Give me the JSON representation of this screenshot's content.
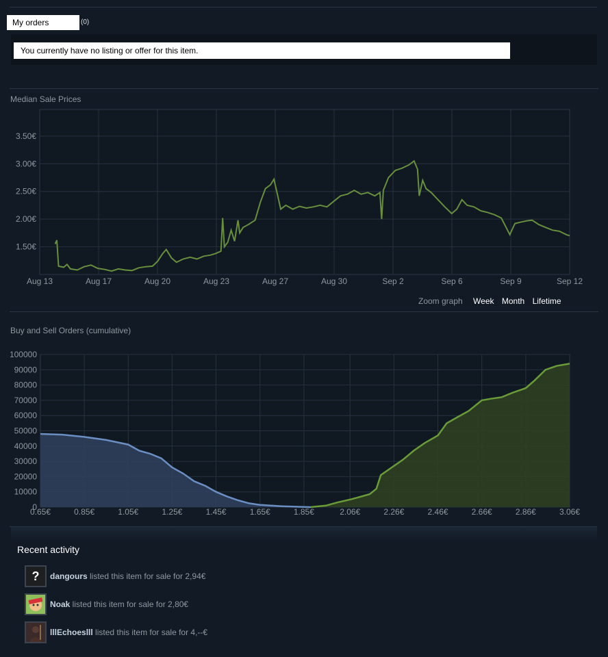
{
  "orders": {
    "tab_label": "My orders",
    "count": "(0)",
    "message": "You currently have no listing or offer for this item."
  },
  "median_chart": {
    "title": "Median Sale Prices",
    "zoom_label": "Zoom graph",
    "zoom_options": [
      "Week",
      "Month",
      "Lifetime"
    ]
  },
  "orders_chart": {
    "title": "Buy and Sell Orders (cumulative)"
  },
  "chart_data": [
    {
      "type": "line",
      "title": "Median Sale Prices",
      "x_tick_labels": [
        "Aug 13",
        "Aug 17",
        "Aug 20",
        "Aug 23",
        "Aug 27",
        "Aug 30",
        "Sep 2",
        "Sep 6",
        "Sep 9",
        "Sep 12"
      ],
      "y_tick_labels": [
        "1.50€",
        "2.00€",
        "2.50€",
        "3.00€",
        "3.50€"
      ],
      "y_ticks": [
        1.5,
        2.0,
        2.5,
        3.0,
        3.5
      ],
      "ylim": [
        1.0,
        3.98
      ],
      "xlim": [
        0,
        31
      ],
      "x_unit": "days since Aug 12",
      "grid": true,
      "color": "#688f3e",
      "points": [
        [
          0.9,
          1.55
        ],
        [
          1.0,
          1.62
        ],
        [
          1.1,
          1.15
        ],
        [
          1.4,
          1.13
        ],
        [
          1.6,
          1.18
        ],
        [
          1.8,
          1.1
        ],
        [
          2.2,
          1.08
        ],
        [
          2.6,
          1.14
        ],
        [
          3.0,
          1.17
        ],
        [
          3.4,
          1.11
        ],
        [
          3.8,
          1.09
        ],
        [
          4.2,
          1.06
        ],
        [
          4.6,
          1.1
        ],
        [
          5.0,
          1.08
        ],
        [
          5.4,
          1.07
        ],
        [
          5.8,
          1.12
        ],
        [
          6.2,
          1.14
        ],
        [
          6.6,
          1.15
        ],
        [
          6.9,
          1.24
        ],
        [
          7.2,
          1.38
        ],
        [
          7.4,
          1.45
        ],
        [
          7.7,
          1.3
        ],
        [
          8.0,
          1.22
        ],
        [
          8.4,
          1.28
        ],
        [
          8.8,
          1.31
        ],
        [
          9.2,
          1.28
        ],
        [
          9.6,
          1.33
        ],
        [
          10.0,
          1.35
        ],
        [
          10.3,
          1.38
        ],
        [
          10.6,
          1.42
        ],
        [
          10.7,
          2.02
        ],
        [
          10.8,
          1.5
        ],
        [
          11.0,
          1.58
        ],
        [
          11.2,
          1.8
        ],
        [
          11.4,
          1.6
        ],
        [
          11.6,
          1.98
        ],
        [
          11.7,
          1.75
        ],
        [
          11.9,
          1.85
        ],
        [
          12.2,
          1.9
        ],
        [
          12.6,
          1.98
        ],
        [
          12.9,
          2.3
        ],
        [
          13.2,
          2.55
        ],
        [
          13.5,
          2.62
        ],
        [
          13.7,
          2.72
        ],
        [
          13.9,
          2.45
        ],
        [
          14.1,
          2.18
        ],
        [
          14.4,
          2.25
        ],
        [
          14.8,
          2.18
        ],
        [
          15.2,
          2.23
        ],
        [
          15.6,
          2.2
        ],
        [
          16.0,
          2.22
        ],
        [
          16.4,
          2.25
        ],
        [
          16.8,
          2.22
        ],
        [
          17.2,
          2.32
        ],
        [
          17.6,
          2.42
        ],
        [
          18.0,
          2.45
        ],
        [
          18.4,
          2.52
        ],
        [
          18.8,
          2.45
        ],
        [
          19.2,
          2.48
        ],
        [
          19.6,
          2.42
        ],
        [
          19.9,
          2.48
        ],
        [
          20.0,
          2.0
        ],
        [
          20.1,
          2.52
        ],
        [
          20.4,
          2.75
        ],
        [
          20.8,
          2.88
        ],
        [
          21.2,
          2.92
        ],
        [
          21.6,
          2.98
        ],
        [
          21.9,
          3.05
        ],
        [
          22.1,
          2.9
        ],
        [
          22.2,
          2.42
        ],
        [
          22.4,
          2.7
        ],
        [
          22.6,
          2.55
        ],
        [
          22.9,
          2.48
        ],
        [
          23.3,
          2.35
        ],
        [
          23.7,
          2.22
        ],
        [
          24.1,
          2.1
        ],
        [
          24.4,
          2.18
        ],
        [
          24.7,
          2.35
        ],
        [
          25.0,
          2.25
        ],
        [
          25.4,
          2.22
        ],
        [
          25.8,
          2.15
        ],
        [
          26.2,
          2.12
        ],
        [
          26.6,
          2.08
        ],
        [
          27.0,
          2.02
        ],
        [
          27.2,
          1.9
        ],
        [
          27.5,
          1.72
        ],
        [
          27.8,
          1.92
        ],
        [
          28.2,
          1.95
        ],
        [
          28.5,
          1.97
        ],
        [
          28.8,
          1.98
        ],
        [
          29.2,
          1.9
        ],
        [
          29.6,
          1.85
        ],
        [
          30.0,
          1.8
        ],
        [
          30.4,
          1.78
        ],
        [
          30.8,
          1.72
        ],
        [
          31.0,
          1.7
        ]
      ]
    },
    {
      "type": "area",
      "title": "Buy and Sell Orders (cumulative)",
      "x_tick_labels": [
        "0.65€",
        "0.85€",
        "1.05€",
        "1.25€",
        "1.45€",
        "1.65€",
        "1.85€",
        "2.06€",
        "2.26€",
        "2.46€",
        "2.66€",
        "2.86€",
        "3.06€"
      ],
      "x_ticks": [
        0.65,
        0.85,
        1.05,
        1.25,
        1.45,
        1.65,
        1.85,
        2.06,
        2.26,
        2.46,
        2.66,
        2.86,
        3.06
      ],
      "y_tick_labels": [
        "0",
        "10000",
        "20000",
        "30000",
        "40000",
        "50000",
        "60000",
        "70000",
        "80000",
        "90000",
        "100000"
      ],
      "y_ticks": [
        0,
        10000,
        20000,
        30000,
        40000,
        50000,
        60000,
        70000,
        80000,
        90000,
        100000
      ],
      "ylim": [
        0,
        100000
      ],
      "xlim": [
        0.65,
        3.06
      ],
      "grid": true,
      "series": [
        {
          "color": "#6b8fc3",
          "fill": "#2f3f5c",
          "points": [
            [
              0.65,
              48000
            ],
            [
              0.75,
              47500
            ],
            [
              0.85,
              46000
            ],
            [
              0.95,
              44000
            ],
            [
              1.05,
              41000
            ],
            [
              1.1,
              37000
            ],
            [
              1.15,
              35000
            ],
            [
              1.2,
              32000
            ],
            [
              1.25,
              26000
            ],
            [
              1.3,
              22000
            ],
            [
              1.35,
              17000
            ],
            [
              1.4,
              14000
            ],
            [
              1.45,
              10000
            ],
            [
              1.5,
              7000
            ],
            [
              1.55,
              4500
            ],
            [
              1.6,
              2500
            ],
            [
              1.65,
              1500
            ],
            [
              1.7,
              1000
            ],
            [
              1.75,
              600
            ],
            [
              1.8,
              300
            ],
            [
              1.85,
              100
            ],
            [
              1.88,
              0
            ]
          ]
        },
        {
          "color": "#6b9c3a",
          "fill": "#2d3f22",
          "points": [
            [
              1.88,
              0
            ],
            [
              1.95,
              1000
            ],
            [
              2.0,
              3000
            ],
            [
              2.06,
              5000
            ],
            [
              2.1,
              6500
            ],
            [
              2.15,
              8500
            ],
            [
              2.18,
              12000
            ],
            [
              2.2,
              21000
            ],
            [
              2.25,
              26000
            ],
            [
              2.3,
              31000
            ],
            [
              2.35,
              37000
            ],
            [
              2.4,
              42000
            ],
            [
              2.46,
              47000
            ],
            [
              2.5,
              55000
            ],
            [
              2.55,
              59000
            ],
            [
              2.6,
              63000
            ],
            [
              2.66,
              70000
            ],
            [
              2.7,
              71000
            ],
            [
              2.75,
              72000
            ],
            [
              2.8,
              75000
            ],
            [
              2.86,
              78000
            ],
            [
              2.9,
              83000
            ],
            [
              2.95,
              90000
            ],
            [
              3.0,
              92500
            ],
            [
              3.06,
              94000
            ]
          ]
        }
      ]
    }
  ],
  "activity": {
    "title": "Recent activity",
    "items": [
      {
        "user": "dangours",
        "text": " listed this item for sale for 2,94€",
        "avatar": "question-avatar"
      },
      {
        "user": "Noak",
        "text": " listed this item for sale for 2,80€",
        "avatar": "cartoon-avatar"
      },
      {
        "user": "lllEchoeslll",
        "text": " listed this item for sale for 4,--€",
        "avatar": "dark-figure-avatar"
      }
    ]
  }
}
